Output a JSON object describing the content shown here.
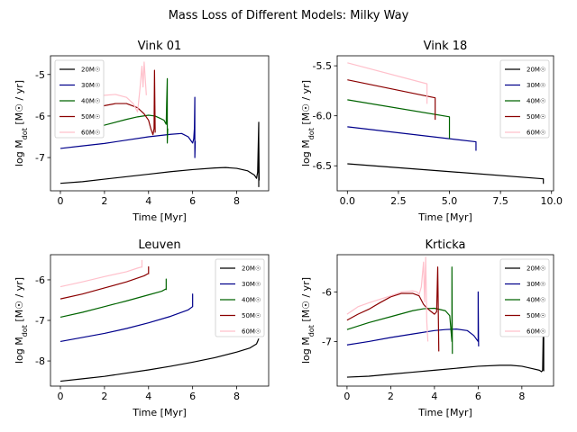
{
  "suptitle": "Mass Loss of Different Models: Milky Way",
  "chart_data": [
    {
      "type": "line",
      "title": "Vink 01",
      "xlabel": "Time [Myr]",
      "ylabel": "log M_dot [M☉ / yr]",
      "xlim": [
        -0.45,
        9.45
      ],
      "ylim": [
        -7.8,
        -4.55
      ],
      "xticks": [
        0,
        2,
        4,
        6,
        8
      ],
      "xticklabels": [
        "0",
        "2",
        "4",
        "6",
        "8"
      ],
      "yticks": [
        -7,
        -6,
        -5
      ],
      "yticklabels": [
        "-7",
        "-6",
        "-5"
      ],
      "legend_loc": "upper-left",
      "series": [
        {
          "name": "20M☉",
          "color": "#000000",
          "x": [
            0,
            1,
            2,
            3,
            4,
            5,
            6,
            7,
            7.5,
            8,
            8.5,
            8.8,
            8.9,
            8.95,
            9.0,
            9.0,
            9.0,
            9.02
          ],
          "y": [
            -7.62,
            -7.58,
            -7.52,
            -7.46,
            -7.4,
            -7.34,
            -7.29,
            -7.25,
            -7.24,
            -7.26,
            -7.32,
            -7.42,
            -7.5,
            -7.35,
            -6.15,
            -7.7,
            -6.5,
            -7.55
          ]
        },
        {
          "name": "30M☉",
          "color": "#00008b",
          "x": [
            0,
            1,
            2,
            3,
            4,
            5,
            5.5,
            5.8,
            6.0,
            6.05,
            6.08,
            6.1,
            6.1,
            6.12
          ],
          "y": [
            -6.78,
            -6.72,
            -6.66,
            -6.58,
            -6.5,
            -6.44,
            -6.42,
            -6.5,
            -6.65,
            -6.55,
            -6.3,
            -5.55,
            -7.0,
            -6.6
          ]
        },
        {
          "name": "40M☉",
          "color": "#006400",
          "x": [
            0,
            1,
            2,
            3,
            3.5,
            4.0,
            4.3,
            4.5,
            4.7,
            4.8,
            4.82,
            4.85,
            4.85,
            4.87
          ],
          "y": [
            -6.48,
            -6.36,
            -6.22,
            -6.08,
            -6.02,
            -5.98,
            -6.0,
            -6.05,
            -6.1,
            -6.2,
            -5.7,
            -5.1,
            -6.65,
            -6.3
          ]
        },
        {
          "name": "50M☉",
          "color": "#8b0000",
          "x": [
            0,
            1,
            2,
            2.5,
            3.0,
            3.5,
            3.8,
            4.0,
            4.1,
            4.2,
            4.25,
            4.27,
            4.3
          ],
          "y": [
            -6.08,
            -5.9,
            -5.75,
            -5.7,
            -5.7,
            -5.8,
            -5.95,
            -6.1,
            -6.3,
            -6.45,
            -6.3,
            -4.9,
            -6.4
          ]
        },
        {
          "name": "60M☉",
          "color": "#ffc0cb",
          "x": [
            0,
            0.5,
            1.0,
            1.5,
            2.0,
            2.5,
            3.0,
            3.3,
            3.5,
            3.6,
            3.7,
            3.75,
            3.8,
            3.85,
            3.9
          ],
          "y": [
            -5.95,
            -5.8,
            -5.65,
            -5.56,
            -5.5,
            -5.48,
            -5.55,
            -5.7,
            -5.9,
            -5.4,
            -4.8,
            -5.3,
            -4.7,
            -5.1,
            -5.5
          ]
        }
      ]
    },
    {
      "type": "line",
      "title": "Vink 18",
      "xlabel": "Time [Myr]",
      "ylabel": "log M_dot [M☉ / yr]",
      "xlim": [
        -0.5,
        10.1
      ],
      "ylim": [
        -6.75,
        -5.4
      ],
      "xticks": [
        0,
        2.5,
        5,
        7.5,
        10
      ],
      "xticklabels": [
        "0.0",
        "2.5",
        "5.0",
        "7.5",
        "10.0"
      ],
      "yticks": [
        -6.5,
        -6.0,
        -5.5
      ],
      "yticklabels": [
        "-6.5",
        "-6.0",
        "-5.5"
      ],
      "legend_loc": "upper-right",
      "series": [
        {
          "name": "20M☉",
          "color": "#000000",
          "x": [
            0,
            9.6,
            9.6
          ],
          "y": [
            -6.48,
            -6.63,
            -6.68
          ]
        },
        {
          "name": "30M☉",
          "color": "#00008b",
          "x": [
            0,
            6.3,
            6.3
          ],
          "y": [
            -6.11,
            -6.26,
            -6.35
          ]
        },
        {
          "name": "40M☉",
          "color": "#006400",
          "x": [
            0,
            5.0,
            5.0
          ],
          "y": [
            -5.84,
            -6.01,
            -6.23
          ]
        },
        {
          "name": "50M☉",
          "color": "#8b0000",
          "x": [
            0,
            4.3,
            4.3
          ],
          "y": [
            -5.64,
            -5.82,
            -6.04
          ]
        },
        {
          "name": "60M☉",
          "color": "#ffc0cb",
          "x": [
            0,
            3.9,
            3.9
          ],
          "y": [
            -5.47,
            -5.68,
            -5.88
          ]
        }
      ]
    },
    {
      "type": "line",
      "title": "Leuven",
      "xlabel": "Time [Myr]",
      "ylabel": "log M_dot [M☉ / yr]",
      "xlim": [
        -0.45,
        9.45
      ],
      "ylim": [
        -8.62,
        -5.38
      ],
      "xticks": [
        0,
        2,
        4,
        6,
        8
      ],
      "xticklabels": [
        "0",
        "2",
        "4",
        "6",
        "8"
      ],
      "yticks": [
        -8,
        -7,
        -6
      ],
      "yticklabels": [
        "-8",
        "-7",
        "-6"
      ],
      "legend_loc": "upper-right",
      "series": [
        {
          "name": "20M☉",
          "color": "#000000",
          "x": [
            0,
            1,
            2,
            3,
            4,
            5,
            6,
            7,
            8,
            8.6,
            8.9,
            9.0
          ],
          "y": [
            -8.5,
            -8.44,
            -8.38,
            -8.3,
            -8.22,
            -8.13,
            -8.03,
            -7.92,
            -7.78,
            -7.68,
            -7.58,
            -7.45
          ]
        },
        {
          "name": "30M☉",
          "color": "#00008b",
          "x": [
            0,
            1,
            2,
            3,
            4,
            5,
            5.8,
            6.0,
            6.0,
            6.0
          ],
          "y": [
            -7.52,
            -7.42,
            -7.32,
            -7.2,
            -7.06,
            -6.9,
            -6.74,
            -6.66,
            -6.35,
            -6.65
          ]
        },
        {
          "name": "40M☉",
          "color": "#006400",
          "x": [
            0,
            1,
            2,
            3,
            4,
            4.6,
            4.8,
            4.8,
            4.8
          ],
          "y": [
            -6.92,
            -6.8,
            -6.66,
            -6.52,
            -6.37,
            -6.28,
            -6.22,
            -5.98,
            -6.25
          ]
        },
        {
          "name": "50M☉",
          "color": "#8b0000",
          "x": [
            0,
            1,
            2,
            3,
            3.8,
            4.0,
            4.0,
            4.0
          ],
          "y": [
            -6.47,
            -6.35,
            -6.2,
            -6.05,
            -5.9,
            -5.84,
            -5.68,
            -5.86
          ]
        },
        {
          "name": "60M☉",
          "color": "#ffc0cb",
          "x": [
            0,
            1,
            2,
            3,
            3.5,
            3.7,
            3.7,
            3.7
          ],
          "y": [
            -6.17,
            -6.05,
            -5.92,
            -5.8,
            -5.71,
            -5.68,
            -5.52,
            -5.7
          ]
        }
      ]
    },
    {
      "type": "line",
      "title": "Krticka",
      "xlabel": "Time [Myr]",
      "ylabel": "log M_dot [M☉ / yr]",
      "xlim": [
        -0.45,
        9.45
      ],
      "ylim": [
        -7.9,
        -5.25
      ],
      "xticks": [
        0,
        2,
        4,
        6,
        8
      ],
      "xticklabels": [
        "0",
        "2",
        "4",
        "6",
        "8"
      ],
      "yticks": [
        -7,
        -6
      ],
      "yticklabels": [
        "-7",
        "-6"
      ],
      "legend_loc": "upper-right",
      "series": [
        {
          "name": "20M☉",
          "color": "#000000",
          "x": [
            0,
            1,
            2,
            3,
            4,
            5,
            6,
            7,
            7.5,
            8,
            8.5,
            8.8,
            8.9,
            8.95,
            9.0,
            9.0
          ],
          "y": [
            -7.72,
            -7.7,
            -7.66,
            -7.62,
            -7.58,
            -7.54,
            -7.5,
            -7.48,
            -7.48,
            -7.5,
            -7.55,
            -7.58,
            -7.61,
            -7.58,
            -6.2,
            -7.6
          ]
        },
        {
          "name": "30M☉",
          "color": "#00008b",
          "x": [
            0,
            1,
            2,
            3,
            4,
            4.5,
            5.0,
            5.5,
            5.8,
            6.0,
            6.0,
            6.02
          ],
          "y": [
            -7.07,
            -7.0,
            -6.92,
            -6.85,
            -6.78,
            -6.76,
            -6.75,
            -6.78,
            -6.88,
            -7.0,
            -6.0,
            -7.1
          ]
        },
        {
          "name": "40M☉",
          "color": "#006400",
          "x": [
            0,
            1,
            2,
            3,
            3.5,
            4.0,
            4.5,
            4.7,
            4.8,
            4.8,
            4.82
          ],
          "y": [
            -6.76,
            -6.62,
            -6.5,
            -6.38,
            -6.34,
            -6.33,
            -6.38,
            -6.48,
            -7.0,
            -5.5,
            -7.25
          ]
        },
        {
          "name": "50M☉",
          "color": "#8b0000",
          "x": [
            0,
            0.5,
            1,
            1.5,
            2.0,
            2.5,
            3.0,
            3.3,
            3.5,
            3.6,
            3.8,
            4.0,
            4.1,
            4.15,
            4.2
          ],
          "y": [
            -6.57,
            -6.45,
            -6.35,
            -6.22,
            -6.1,
            -6.03,
            -6.03,
            -6.08,
            -6.25,
            -6.3,
            -6.38,
            -6.45,
            -6.4,
            -5.5,
            -7.2
          ]
        },
        {
          "name": "60M☉",
          "color": "#ffc0cb",
          "x": [
            0,
            0.5,
            1.0,
            1.5,
            2.0,
            2.5,
            3.0,
            3.2,
            3.3,
            3.4,
            3.5,
            3.55,
            3.6,
            3.65,
            3.7
          ],
          "y": [
            -6.45,
            -6.3,
            -6.22,
            -6.15,
            -6.08,
            -6.0,
            -5.98,
            -6.0,
            -6.05,
            -5.9,
            -5.4,
            -6.2,
            -5.3,
            -6.6,
            -7.0
          ]
        }
      ]
    }
  ]
}
